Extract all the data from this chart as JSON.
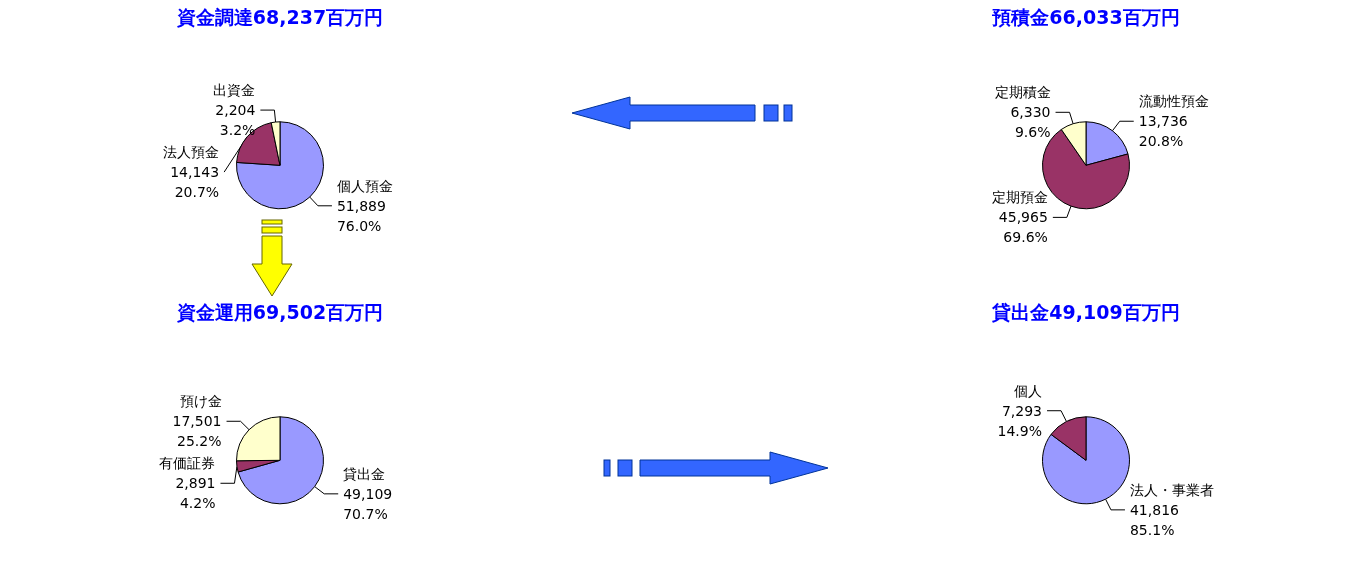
{
  "chart_data": [
    {
      "type": "pie",
      "title": "資金調達68,237百万円",
      "categories": [
        "個人預金",
        "法人預金",
        "出資金"
      ],
      "values": [
        51889,
        14143,
        2204
      ],
      "colors": [
        "#9999ff",
        "#993366",
        "#ffffcc"
      ],
      "value_labels": [
        "51,889\n76.0%",
        "14,143\n20.7%",
        "2,204\n3.2%"
      ]
    },
    {
      "type": "pie",
      "title": "預積金66,033百万円",
      "categories": [
        "流動性預金",
        "定期預金",
        "定期積金"
      ],
      "values": [
        13736,
        45965,
        6330
      ],
      "colors": [
        "#9999ff",
        "#993366",
        "#ffffcc"
      ],
      "value_labels": [
        "13,736\n20.8%",
        "45,965\n69.6%",
        "6,330\n9.6%"
      ]
    },
    {
      "type": "pie",
      "title": "資金運用69,502百万円",
      "categories": [
        "貸出金",
        "有価証券",
        "預け金"
      ],
      "values": [
        49109,
        2891,
        17501
      ],
      "colors": [
        "#9999ff",
        "#993366",
        "#ffffcc"
      ],
      "value_labels": [
        "49,109\n70.7%",
        "2,891\n4.2%",
        "17,501\n25.2%"
      ]
    },
    {
      "type": "pie",
      "title": "貸出金49,109百万円",
      "categories": [
        "法人・事業者",
        "個人"
      ],
      "values": [
        41816,
        7293
      ],
      "colors": [
        "#9999ff",
        "#993366"
      ],
      "value_labels": [
        "41,816\n85.1%",
        "7,293\n14.9%"
      ]
    }
  ]
}
